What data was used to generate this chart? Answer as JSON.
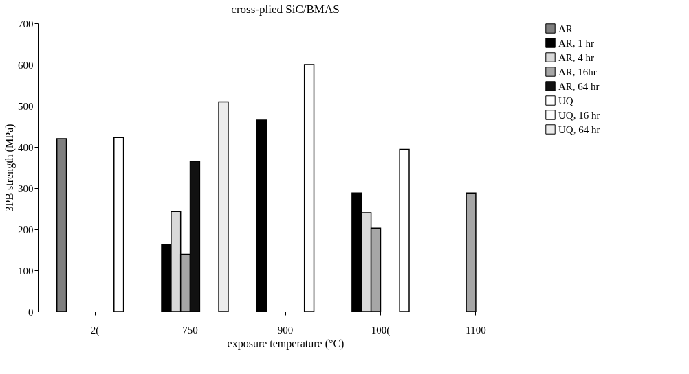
{
  "chart_data": {
    "type": "bar",
    "title": "cross-plied SiC/BMAS",
    "xlabel": "exposure temperature (°C)",
    "ylabel": "3PB strength (MPa)",
    "categories": [
      "2(",
      "750",
      "900",
      "100(",
      "1100"
    ],
    "series": [
      {
        "name": "AR",
        "color": "#7f7f7f",
        "values": [
          420,
          null,
          null,
          null,
          null
        ]
      },
      {
        "name": "AR, 1 hr",
        "color": "#000000",
        "values": [
          null,
          163,
          465,
          288,
          null
        ]
      },
      {
        "name": "AR, 4 hr",
        "color": "#d9d9d9",
        "values": [
          null,
          243,
          null,
          240,
          null
        ]
      },
      {
        "name": "AR,  16hr",
        "color": "#a6a6a6",
        "values": [
          null,
          139,
          null,
          203,
          288
        ]
      },
      {
        "name": "AR, 64 hr",
        "color": "#111111",
        "values": [
          null,
          365,
          null,
          null,
          null
        ]
      },
      {
        "name": "UQ",
        "color": "#ffffff",
        "values": [
          null,
          null,
          null,
          null,
          null
        ]
      },
      {
        "name": "UQ, 16 hr",
        "color": "#fefefe",
        "values": [
          423,
          null,
          600,
          394,
          null
        ]
      },
      {
        "name": "UQ, 64 hr",
        "color": "#ececec",
        "values": [
          null,
          509,
          null,
          null,
          null
        ]
      }
    ],
    "ylim": [
      0,
      700
    ],
    "yticks": [
      0,
      100,
      200,
      300,
      400,
      500,
      600,
      700
    ],
    "grid": false,
    "legend": "right"
  }
}
